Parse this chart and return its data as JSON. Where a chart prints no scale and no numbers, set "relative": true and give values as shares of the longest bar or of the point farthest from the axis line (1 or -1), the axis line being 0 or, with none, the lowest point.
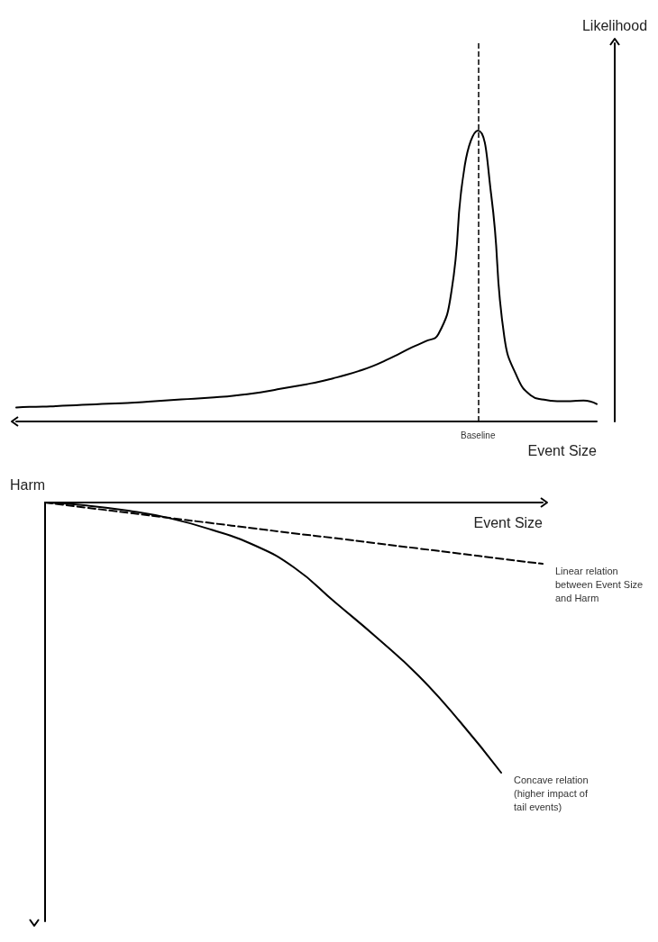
{
  "chart_data": [
    {
      "type": "line",
      "relative": true,
      "xlabel": "Event Size",
      "ylabel": "Likelihood",
      "marker": "none",
      "categories": [
        null,
        null,
        null,
        null,
        null,
        null,
        null,
        null,
        null,
        null,
        null,
        null,
        null,
        null,
        null,
        null,
        null,
        null,
        null,
        null,
        null,
        null,
        null,
        null,
        null,
        null,
        null,
        null,
        null,
        null,
        null,
        null,
        null,
        null,
        null,
        null,
        null,
        null,
        null,
        null,
        null,
        null,
        null,
        null,
        null
      ],
      "series": [
        {
          "color": "#000000",
          "values": [
            0.048,
            0.05,
            0.051,
            0.053,
            0.055,
            0.057,
            0.059,
            0.061,
            0.063,
            0.065,
            0.068,
            0.071,
            0.074,
            0.077,
            0.08,
            0.083,
            0.086,
            0.091,
            0.097,
            0.104,
            0.112,
            0.12,
            0.128,
            0.137,
            0.148,
            0.16,
            0.174,
            0.19,
            0.21,
            0.232,
            0.255,
            0.275,
            0.3,
            0.45,
            0.88,
            1,
            0.78,
            0.29,
            0.15,
            0.09,
            0.075,
            0.07,
            0.07,
            0.072,
            0.06
          ]
        }
      ],
      "annotations": [
        "Baseline"
      ]
    },
    {
      "type": "line",
      "relative": true,
      "xlabel": "Event Size",
      "ylabel": "Harm",
      "marker": "none",
      "categories": [
        null,
        null,
        null,
        null,
        null,
        null,
        null,
        null,
        null,
        null,
        null,
        null,
        null
      ],
      "series": [
        {
          "name": "Linear relation\nbetween Event Size\nand Harm",
          "color": "#000000",
          "line_style": "dashed",
          "values": [
            0,
            -0.019,
            -0.038,
            -0.057,
            -0.076,
            -0.095,
            -0.114,
            -0.132,
            -0.151,
            -0.17,
            -0.189,
            -0.208,
            -0.227
          ]
        },
        {
          "name": "Concave relation\n(higher impact of\ntail events)",
          "color": "#000000",
          "line_style": "solid",
          "values": [
            0,
            -0.011,
            -0.03,
            -0.058,
            -0.1,
            -0.155,
            -0.24,
            -0.37,
            -0.5,
            -0.64,
            -0.81,
            -1,
            null
          ]
        }
      ]
    }
  ]
}
